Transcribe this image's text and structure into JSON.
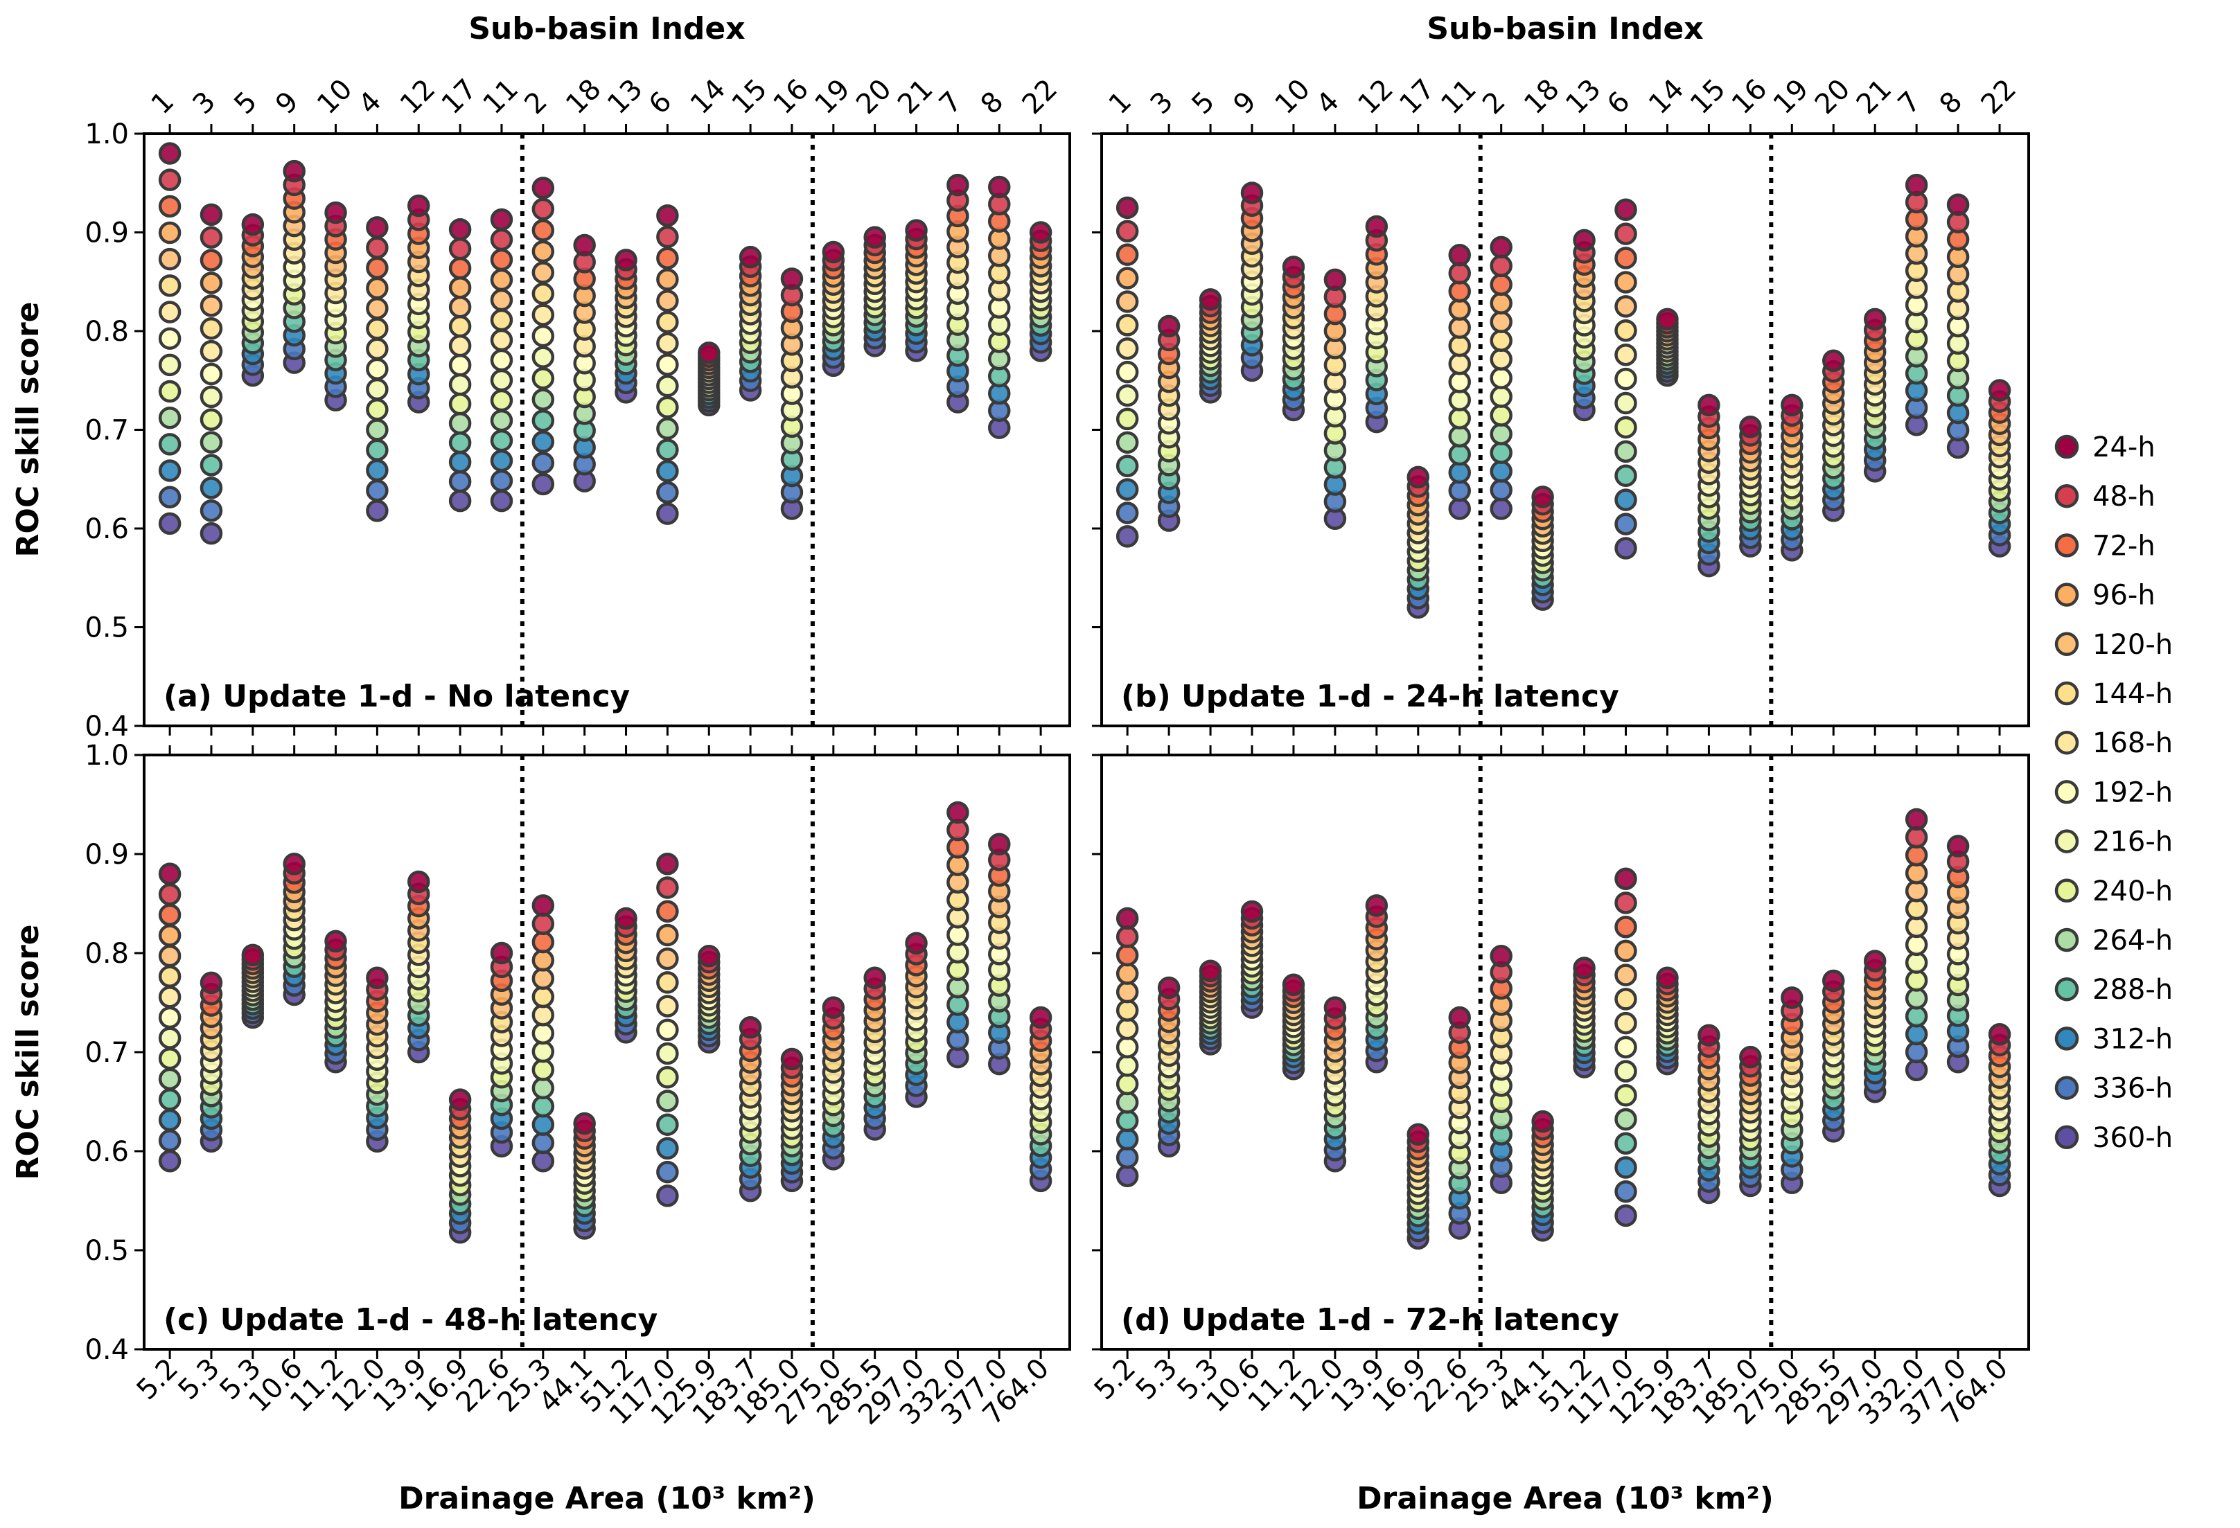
{
  "chart_data": {
    "type": "scatter",
    "ylabel": "ROC skill score",
    "xlabel_bottom": "Drainage Area (10³ km²)",
    "xlabel_top": "Sub-basin Index",
    "ylim": [
      0.4,
      1.0
    ],
    "yticks": [
      "0.4",
      "0.5",
      "0.6",
      "0.7",
      "0.8",
      "0.9",
      "1.0"
    ],
    "sub_basin_index": [
      "1",
      "3",
      "5",
      "9",
      "10",
      "4",
      "12",
      "17",
      "11",
      "2",
      "18",
      "13",
      "6",
      "14",
      "15",
      "16",
      "19",
      "20",
      "21",
      "7",
      "8",
      "22"
    ],
    "drainage_area": [
      "5.2",
      "5.3",
      "5.3",
      "10.6",
      "11.2",
      "12.0",
      "13.9",
      "16.9",
      "22.6",
      "25.3",
      "44.1",
      "51.2",
      "117.0",
      "125.9",
      "183.7",
      "185.0",
      "275.0",
      "285.5",
      "297.0",
      "332.0",
      "377.0",
      "764.0"
    ],
    "divider_after_category": [
      9,
      16
    ],
    "lead_times": [
      "24-h",
      "48-h",
      "72-h",
      "96-h",
      "120-h",
      "144-h",
      "168-h",
      "192-h",
      "216-h",
      "240-h",
      "264-h",
      "288-h",
      "312-h",
      "336-h",
      "360-h"
    ],
    "lead_colors": [
      "#9e0142",
      "#d53e4f",
      "#f46d43",
      "#fdae61",
      "#fdbe75",
      "#fee08b",
      "#fee8a0",
      "#ffffbf",
      "#f2f8b0",
      "#e6f598",
      "#abdda4",
      "#66c2a5",
      "#3288bd",
      "#4a79c0",
      "#5e4fa2"
    ],
    "panels": [
      {
        "label": "(a) Update 1-d - No latency",
        "ranges": [
          [
            0.98,
            0.605
          ],
          [
            0.918,
            0.595
          ],
          [
            0.908,
            0.755
          ],
          [
            0.962,
            0.768
          ],
          [
            0.92,
            0.73
          ],
          [
            0.905,
            0.618
          ],
          [
            0.927,
            0.728
          ],
          [
            0.903,
            0.628
          ],
          [
            0.913,
            0.628
          ],
          [
            0.945,
            0.645
          ],
          [
            0.887,
            0.648
          ],
          [
            0.872,
            0.738
          ],
          [
            0.917,
            0.615
          ],
          [
            0.778,
            0.725
          ],
          [
            0.875,
            0.74
          ],
          [
            0.853,
            0.62
          ],
          [
            0.88,
            0.765
          ],
          [
            0.895,
            0.785
          ],
          [
            0.902,
            0.78
          ],
          [
            0.948,
            0.728
          ],
          [
            0.946,
            0.702
          ],
          [
            0.9,
            0.78
          ]
        ]
      },
      {
        "label": "(b) Update 1-d - 24-h latency",
        "ranges": [
          [
            0.925,
            0.592
          ],
          [
            0.805,
            0.608
          ],
          [
            0.832,
            0.738
          ],
          [
            0.94,
            0.76
          ],
          [
            0.865,
            0.72
          ],
          [
            0.852,
            0.61
          ],
          [
            0.906,
            0.708
          ],
          [
            0.652,
            0.52
          ],
          [
            0.877,
            0.62
          ],
          [
            0.885,
            0.62
          ],
          [
            0.632,
            0.528
          ],
          [
            0.892,
            0.72
          ],
          [
            0.923,
            0.58
          ],
          [
            0.812,
            0.755
          ],
          [
            0.725,
            0.562
          ],
          [
            0.703,
            0.582
          ],
          [
            0.725,
            0.578
          ],
          [
            0.77,
            0.618
          ],
          [
            0.812,
            0.658
          ],
          [
            0.948,
            0.705
          ],
          [
            0.928,
            0.682
          ],
          [
            0.74,
            0.582
          ]
        ]
      },
      {
        "label": "(c) Update 1-d - 48-h latency",
        "ranges": [
          [
            0.88,
            0.59
          ],
          [
            0.77,
            0.61
          ],
          [
            0.798,
            0.735
          ],
          [
            0.89,
            0.758
          ],
          [
            0.812,
            0.69
          ],
          [
            0.775,
            0.61
          ],
          [
            0.872,
            0.7
          ],
          [
            0.652,
            0.518
          ],
          [
            0.8,
            0.605
          ],
          [
            0.848,
            0.59
          ],
          [
            0.628,
            0.522
          ],
          [
            0.835,
            0.72
          ],
          [
            0.89,
            0.555
          ],
          [
            0.797,
            0.71
          ],
          [
            0.725,
            0.56
          ],
          [
            0.693,
            0.57
          ],
          [
            0.745,
            0.592
          ],
          [
            0.775,
            0.622
          ],
          [
            0.81,
            0.655
          ],
          [
            0.942,
            0.695
          ],
          [
            0.91,
            0.688
          ],
          [
            0.735,
            0.57
          ]
        ]
      },
      {
        "label": "(d) Update 1-d - 72-h latency",
        "ranges": [
          [
            0.835,
            0.575
          ],
          [
            0.765,
            0.605
          ],
          [
            0.782,
            0.708
          ],
          [
            0.842,
            0.745
          ],
          [
            0.768,
            0.683
          ],
          [
            0.745,
            0.59
          ],
          [
            0.848,
            0.69
          ],
          [
            0.617,
            0.512
          ],
          [
            0.735,
            0.522
          ],
          [
            0.797,
            0.568
          ],
          [
            0.63,
            0.52
          ],
          [
            0.785,
            0.685
          ],
          [
            0.875,
            0.535
          ],
          [
            0.775,
            0.688
          ],
          [
            0.717,
            0.558
          ],
          [
            0.695,
            0.565
          ],
          [
            0.755,
            0.568
          ],
          [
            0.772,
            0.62
          ],
          [
            0.792,
            0.66
          ],
          [
            0.935,
            0.682
          ],
          [
            0.908,
            0.69
          ],
          [
            0.718,
            0.565
          ]
        ]
      }
    ]
  }
}
